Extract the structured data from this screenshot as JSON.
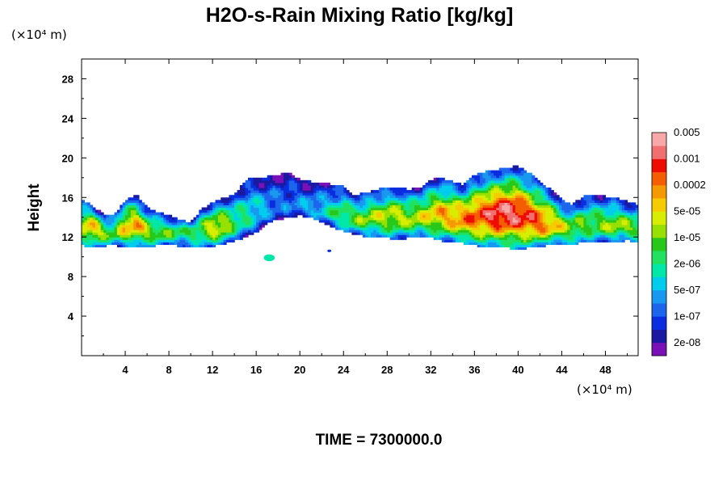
{
  "chart_data": {
    "type": "heatmap",
    "title": "H2O-s-Rain Mixing Ratio [kg/kg]",
    "ylabel": "Height",
    "y_unit": "(×10⁴ m)",
    "x_unit": "(×10⁴ m)",
    "xlim": [
      0,
      51
    ],
    "ylim": [
      0,
      30
    ],
    "x_ticks": [
      4,
      8,
      12,
      16,
      20,
      24,
      28,
      32,
      36,
      40,
      44,
      48
    ],
    "y_ticks": [
      4,
      8,
      12,
      16,
      20,
      24,
      28
    ],
    "colorbar": {
      "levels": [
        "2e-08",
        "1e-07",
        "5e-07",
        "2e-06",
        "1e-05",
        "5e-05",
        "0.0002",
        "0.001",
        "0.005"
      ],
      "colors": [
        "#7a10b8",
        "#1a1aa0",
        "#0a2de0",
        "#1c66ee",
        "#1898ee",
        "#00ccee",
        "#00e8a8",
        "#22e060",
        "#28c81a",
        "#98e000",
        "#d8ee00",
        "#f4cc00",
        "#f49a00",
        "#f45e00",
        "#ee0c00",
        "#f07070",
        "#f8a8a8"
      ]
    },
    "cloud_band": {
      "x": [
        0,
        1,
        2,
        3,
        4,
        5,
        6,
        7,
        8,
        9,
        10,
        11,
        12,
        13,
        14,
        15,
        16,
        17,
        18,
        19,
        20,
        21,
        22,
        23,
        24,
        25,
        26,
        27,
        28,
        29,
        30,
        31,
        32,
        33,
        34,
        35,
        36,
        37,
        38,
        39,
        40,
        41,
        42,
        43,
        44,
        45,
        46,
        47,
        48,
        49,
        50,
        51
      ],
      "top": [
        15.8,
        15.2,
        14.3,
        14.2,
        15.8,
        16.3,
        15.0,
        14.5,
        14.2,
        13.8,
        13.5,
        14.8,
        15.5,
        16.0,
        16.3,
        17.8,
        18.0,
        18.1,
        18.3,
        18.5,
        17.8,
        17.6,
        17.5,
        17.3,
        17.1,
        16.2,
        16.5,
        16.8,
        17.0,
        17.1,
        16.8,
        17.0,
        17.8,
        18.0,
        17.6,
        17.3,
        18.3,
        18.6,
        18.8,
        19.0,
        19.2,
        18.5,
        17.6,
        16.8,
        15.8,
        15.3,
        16.2,
        16.3,
        16.1,
        16.0,
        15.6,
        15.3
      ],
      "bottom": [
        11.2,
        11.0,
        11.1,
        11.2,
        11.0,
        11.1,
        11.0,
        11.2,
        11.3,
        11.1,
        10.9,
        11.0,
        11.1,
        11.3,
        11.6,
        12.0,
        12.5,
        13.5,
        13.8,
        14.0,
        14.2,
        14.0,
        13.5,
        13.0,
        12.6,
        12.3,
        12.1,
        12.0,
        11.9,
        11.8,
        11.9,
        12.0,
        12.0,
        11.6,
        11.6,
        11.4,
        11.2,
        11.0,
        11.0,
        10.9,
        10.8,
        10.9,
        11.0,
        11.3,
        11.2,
        11.3,
        11.5,
        11.4,
        11.6,
        11.5,
        11.7,
        11.5
      ],
      "core": [
        12.8,
        13.0,
        12.5,
        12.4,
        13.1,
        13.2,
        12.8,
        12.3,
        12.5,
        12.6,
        12.4,
        12.7,
        13.0,
        13.1,
        13.5,
        14.0,
        14.6,
        15.0,
        15.3,
        15.4,
        15.0,
        14.8,
        14.6,
        14.5,
        14.2,
        13.8,
        13.9,
        14.0,
        14.1,
        14.1,
        13.9,
        14.0,
        14.2,
        14.3,
        14.0,
        13.8,
        14.0,
        14.2,
        14.3,
        14.4,
        14.3,
        13.9,
        13.5,
        13.2,
        13.0,
        12.8,
        13.2,
        13.3,
        13.2,
        13.1,
        13.0,
        12.9
      ],
      "intensity": [
        0.62,
        0.7,
        0.55,
        0.5,
        0.68,
        0.74,
        0.6,
        0.52,
        0.48,
        0.46,
        0.44,
        0.52,
        0.66,
        0.62,
        0.46,
        0.4,
        0.34,
        0.26,
        0.2,
        0.2,
        0.24,
        0.28,
        0.32,
        0.4,
        0.48,
        0.5,
        0.54,
        0.58,
        0.62,
        0.6,
        0.58,
        0.6,
        0.66,
        0.72,
        0.74,
        0.78,
        0.82,
        0.86,
        0.94,
        0.95,
        0.92,
        0.86,
        0.82,
        0.72,
        0.6,
        0.54,
        0.52,
        0.5,
        0.54,
        0.56,
        0.54,
        0.52
      ]
    },
    "isolated_cells": [
      {
        "x": 17.2,
        "y": 9.9,
        "r": 0.5,
        "level": 0.4
      },
      {
        "x": 22.7,
        "y": 10.6,
        "r": 0.18,
        "level": 0.1
      }
    ],
    "annotation": "TIME = 7300000.0"
  }
}
